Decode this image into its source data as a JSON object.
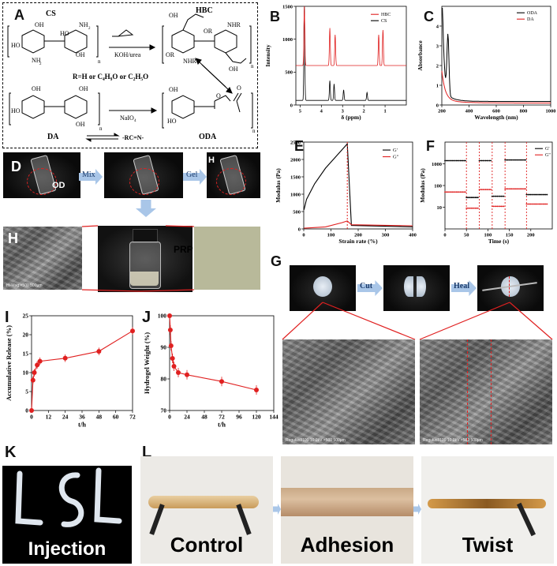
{
  "panels": {
    "A": "A",
    "B": "B",
    "C": "C",
    "D": "D",
    "E": "E",
    "F": "F",
    "G": "G",
    "H": "H",
    "I": "I",
    "J": "J",
    "K": "K",
    "L": "L"
  },
  "schemeA": {
    "cs": "CS",
    "hbc": "HBC",
    "da": "DA",
    "oda": "ODA",
    "reagent1": "KOH/urea",
    "reagent2": "NaIO",
    "reagent2_sub": "4",
    "r_def": "R=H or C₄H₉O or C₂H₅O",
    "link": "-RC=N-",
    "n1": "n",
    "n2": "n",
    "n3": "n",
    "n4": "n"
  },
  "processD": {
    "label_oda": "OD",
    "mix": "Mix",
    "gel": "Gel",
    "h_small": "H"
  },
  "processH": {
    "prp": "PRP",
    "sem_cap": "Hi-Mag  ×500  500µm"
  },
  "processG": {
    "cut": "Cut",
    "heal": "Heal",
    "sem_cap1": "Regulus8100 10.0kV  ×500  500µm",
    "sem_cap2": "Regulus8100 10.0kV  ×500  500µm"
  },
  "captionsKL": {
    "injection": "Injection",
    "control": "Control",
    "adhesion": "Adhesion",
    "twist": "Twist"
  },
  "colors": {
    "black": "#000000",
    "red": "#e02020"
  },
  "chart_data": [
    {
      "id": "B",
      "type": "line",
      "title": "",
      "xlabel": "δ (ppm)",
      "ylabel": "Intensity",
      "xlim": [
        5.2,
        0
      ],
      "ylim": [
        0,
        1500
      ],
      "xticks": [
        5,
        4,
        3,
        2,
        1
      ],
      "yticks": [
        0,
        500,
        1000,
        1500
      ],
      "series": [
        {
          "name": "HBC",
          "color": "#e02020"
        },
        {
          "name": "CS",
          "color": "#000000"
        }
      ]
    },
    {
      "id": "C",
      "type": "line",
      "title": "",
      "xlabel": "Wavelength (nm)",
      "ylabel": "Absorbance",
      "xlim": [
        200,
        1000
      ],
      "ylim": [
        0,
        5
      ],
      "xticks": [
        200,
        400,
        600,
        800,
        1000
      ],
      "yticks": [
        0,
        1,
        2,
        3,
        4
      ],
      "series": [
        {
          "name": "ODA",
          "color": "#000000"
        },
        {
          "name": "DA",
          "color": "#e02020"
        }
      ]
    },
    {
      "id": "E",
      "type": "line",
      "title": "",
      "xlabel": "Strain rate (%)",
      "ylabel": "Modulus (Pa)",
      "xlim": [
        0,
        400
      ],
      "ylim": [
        0,
        2500
      ],
      "xticks": [
        0,
        100,
        200,
        300,
        400
      ],
      "yticks": [
        0,
        500,
        1000,
        1500,
        2000,
        2500
      ],
      "series": [
        {
          "name": "G'",
          "color": "#000000",
          "x": [
            1,
            10,
            40,
            80,
            120,
            160,
            175,
            400
          ],
          "y": [
            550,
            850,
            1300,
            1750,
            2100,
            2450,
            100,
            60
          ]
        },
        {
          "name": "G\"",
          "color": "#e02020",
          "x": [
            1,
            80,
            140,
            160,
            175,
            400
          ],
          "y": [
            20,
            60,
            180,
            230,
            120,
            90
          ]
        }
      ]
    },
    {
      "id": "F",
      "type": "line",
      "title": "",
      "xlabel": "Time (s)",
      "ylabel": "Modulus (Pa)",
      "xlim": [
        0,
        250
      ],
      "yscale": "log",
      "ylim": [
        1,
        10000
      ],
      "xticks": [
        0,
        50,
        100,
        150,
        200
      ],
      "yticks": [
        10,
        100,
        1000
      ],
      "series": [
        {
          "name": "G'",
          "color": "#000000",
          "x": [
            0,
            49,
            50,
            79,
            80,
            109,
            110,
            139,
            140,
            189,
            190,
            240
          ],
          "y": [
            1400,
            1400,
            28,
            28,
            1400,
            1400,
            32,
            32,
            1500,
            1500,
            38,
            38
          ]
        },
        {
          "name": "G\"",
          "color": "#e02020",
          "x": [
            0,
            49,
            50,
            79,
            80,
            109,
            110,
            139,
            140,
            189,
            190,
            240
          ],
          "y": [
            50,
            50,
            9,
            9,
            65,
            65,
            11,
            11,
            70,
            70,
            14,
            14
          ]
        }
      ]
    },
    {
      "id": "I",
      "type": "line",
      "title": "",
      "xlabel": "t/h",
      "ylabel": "Accumulative Release (%)",
      "xlim": [
        0,
        72
      ],
      "ylim": [
        0,
        25
      ],
      "xticks": [
        0,
        12,
        24,
        36,
        48,
        60,
        72
      ],
      "yticks": [
        0,
        5,
        10,
        15,
        20,
        25
      ],
      "series": [
        {
          "name": "",
          "color": "#e02020",
          "x": [
            0,
            1,
            2,
            4,
            6,
            24,
            48,
            72
          ],
          "y": [
            0,
            8,
            10,
            12,
            13,
            13.8,
            15.6,
            21
          ]
        }
      ]
    },
    {
      "id": "J",
      "type": "line",
      "title": "",
      "xlabel": "t/h",
      "ylabel": "Hydrogel Weight (%)",
      "xlim": [
        0,
        144
      ],
      "ylim": [
        70,
        100
      ],
      "xticks": [
        0,
        24,
        48,
        72,
        96,
        120,
        144
      ],
      "yticks": [
        70,
        80,
        90,
        100
      ],
      "series": [
        {
          "name": "",
          "color": "#e02020",
          "x": [
            0,
            1,
            2,
            4,
            6,
            12,
            24,
            72,
            120
          ],
          "y": [
            100,
            95.5,
            90.5,
            86.5,
            84,
            82,
            81.3,
            79.2,
            76.5
          ]
        }
      ]
    }
  ]
}
